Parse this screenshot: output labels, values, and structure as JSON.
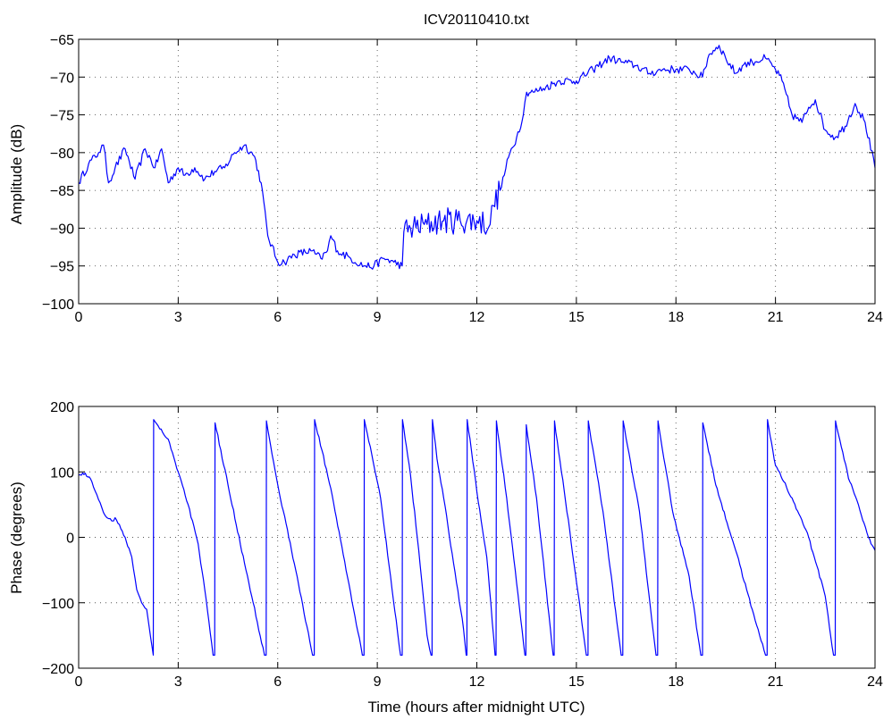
{
  "title": "ICV20110410.txt",
  "colors": {
    "trace": "#0000ff",
    "axes": "#000000",
    "background": "#ffffff"
  },
  "chart_data": [
    {
      "type": "line",
      "title": "ICV20110410.txt",
      "xlabel": "",
      "ylabel": "Amplitude (dB)",
      "xlim": [
        0,
        24
      ],
      "ylim": [
        -100,
        -65
      ],
      "xticks": [
        0,
        3,
        6,
        9,
        12,
        15,
        18,
        21,
        24
      ],
      "yticks": [
        -100,
        -95,
        -90,
        -85,
        -80,
        -75,
        -70,
        -65
      ],
      "grid": true,
      "series": [
        {
          "color": "#0000ff",
          "x": [
            0,
            0.3,
            0.6,
            0.75,
            0.9,
            1.1,
            1.4,
            1.7,
            2.0,
            2.3,
            2.5,
            2.7,
            3.0,
            3.2,
            3.5,
            3.8,
            4.1,
            4.4,
            4.7,
            5.0,
            5.3,
            5.5,
            5.7,
            6.0,
            6.2,
            6.5,
            7.0,
            7.3,
            7.5,
            7.6,
            7.8,
            8.2,
            8.6,
            8.9,
            9.2,
            9.5,
            9.75,
            9.8,
            10.0,
            10.5,
            11.0,
            11.5,
            12.0,
            12.4,
            12.5,
            12.7,
            13.0,
            13.2,
            13.4,
            13.5,
            13.7,
            14.0,
            14.5,
            15.0,
            15.5,
            16.0,
            16.4,
            16.8,
            17.2,
            17.6,
            18.0,
            18.4,
            18.8,
            19.0,
            19.3,
            19.5,
            19.8,
            20.0,
            20.3,
            20.7,
            21.0,
            21.2,
            21.5,
            21.8,
            22.0,
            22.2,
            22.5,
            22.8,
            23.1,
            23.4,
            23.7,
            24.0
          ],
          "y": [
            -84,
            -81.5,
            -80,
            -79,
            -84,
            -82,
            -79.5,
            -83.5,
            -79.5,
            -82,
            -79.5,
            -84,
            -82,
            -83,
            -82,
            -83.5,
            -82.5,
            -82,
            -80,
            -79,
            -80.5,
            -84,
            -91,
            -94.5,
            -94.5,
            -93.5,
            -93,
            -94,
            -93,
            -91,
            -93,
            -94,
            -95,
            -95,
            -94,
            -94.5,
            -95,
            -90.5,
            -90,
            -89.5,
            -89,
            -89,
            -89,
            -89.5,
            -87,
            -85,
            -80,
            -78,
            -75,
            -72,
            -72,
            -71.5,
            -70.5,
            -70.5,
            -69,
            -67.5,
            -68,
            -68.5,
            -69.5,
            -69,
            -69,
            -69,
            -70,
            -67,
            -65.8,
            -67.5,
            -69.5,
            -68.5,
            -68,
            -67.5,
            -69,
            -70.5,
            -75,
            -76,
            -74,
            -73,
            -77,
            -78,
            -76.5,
            -73.5,
            -76,
            -82
          ]
        }
      ]
    },
    {
      "type": "line",
      "title": "",
      "xlabel": "Time (hours after midnight UTC)",
      "ylabel": "Phase (degrees)",
      "xlim": [
        0,
        24
      ],
      "ylim": [
        -200,
        200
      ],
      "xticks": [
        0,
        3,
        6,
        9,
        12,
        15,
        18,
        21,
        24
      ],
      "yticks": [
        -200,
        -100,
        0,
        100,
        200
      ],
      "grid": true,
      "series": [
        {
          "color": "#0000ff",
          "x": [
            0,
            0.2,
            0.4,
            0.55,
            0.7,
            0.85,
            1.0,
            1.1,
            1.4,
            1.6,
            1.75,
            1.9,
            2.05,
            2.25,
            2.26,
            2.4,
            2.7,
            3.0,
            3.3,
            3.6,
            3.8,
            4.05,
            4.1,
            4.11,
            4.5,
            5.0,
            5.6,
            5.65,
            5.66,
            6.0,
            6.5,
            7.05,
            7.1,
            7.11,
            7.6,
            8.1,
            8.55,
            8.6,
            8.61,
            9.1,
            9.7,
            9.75,
            9.76,
            10.0,
            10.25,
            10.5,
            10.62,
            10.65,
            10.66,
            10.8,
            11.0,
            11.3,
            11.6,
            11.68,
            11.7,
            11.71,
            12.0,
            12.3,
            12.55,
            12.58,
            12.59,
            12.9,
            13.2,
            13.45,
            13.48,
            13.49,
            13.8,
            14.3,
            14.33,
            14.34,
            14.8,
            15.3,
            15.35,
            15.36,
            15.8,
            16.35,
            16.4,
            16.41,
            16.9,
            17.4,
            17.45,
            17.46,
            17.9,
            18.4,
            18.75,
            18.8,
            18.81,
            19.2,
            19.8,
            20.3,
            20.7,
            20.75,
            20.76,
            21.0,
            21.5,
            22.0,
            22.5,
            22.75,
            22.8,
            22.81,
            23.2,
            23.5,
            23.8,
            24.0
          ],
          "y": [
            95,
            98,
            85,
            65,
            45,
            30,
            25,
            30,
            0,
            -30,
            -80,
            -100,
            -110,
            -180,
            180,
            170,
            150,
            100,
            50,
            -10,
            -80,
            -180,
            -180,
            175,
            80,
            -40,
            -180,
            -180,
            178,
            80,
            -40,
            -180,
            -180,
            180,
            75,
            -60,
            -180,
            -180,
            180,
            60,
            -180,
            -180,
            180,
            95,
            -20,
            -150,
            -180,
            -180,
            180,
            120,
            60,
            -40,
            -140,
            -180,
            -180,
            180,
            70,
            -30,
            -180,
            -180,
            178,
            60,
            -70,
            -180,
            -180,
            172,
            60,
            -180,
            -180,
            178,
            10,
            -180,
            -180,
            178,
            40,
            -180,
            -180,
            178,
            40,
            -180,
            -180,
            178,
            40,
            -60,
            -180,
            -180,
            175,
            80,
            -20,
            -110,
            -180,
            -180,
            180,
            110,
            60,
            0,
            -90,
            -180,
            -180,
            178,
            90,
            50,
            0,
            -20
          ]
        }
      ]
    }
  ]
}
